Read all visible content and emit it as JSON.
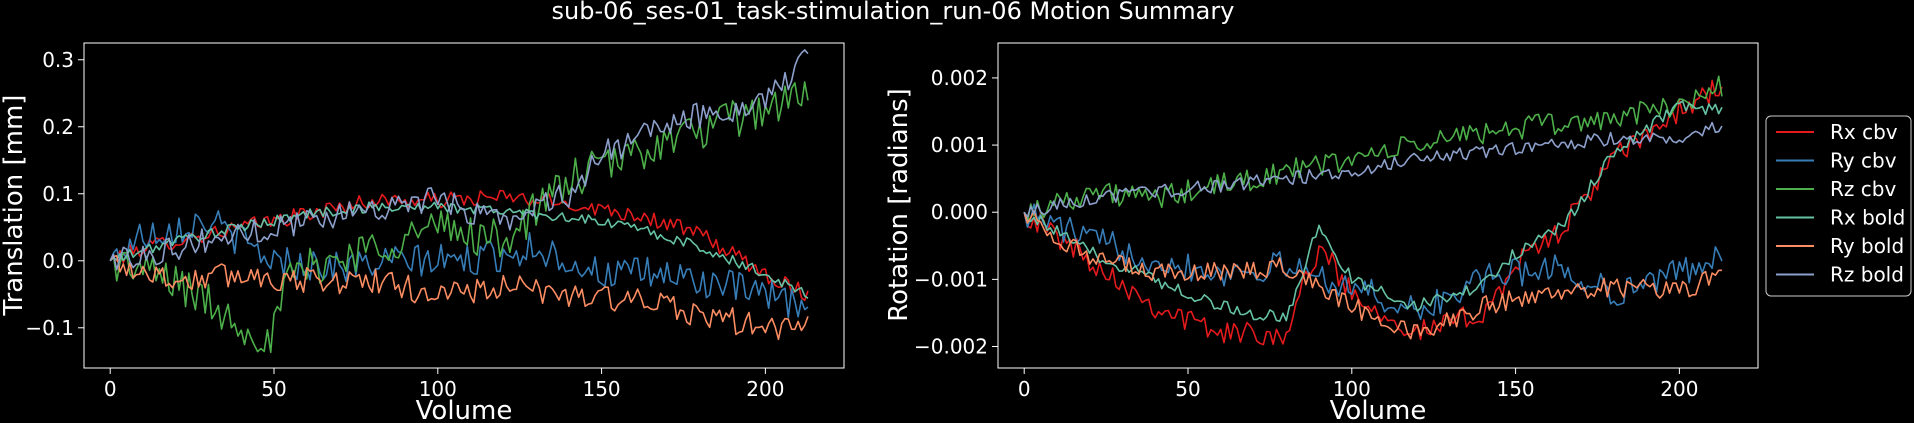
{
  "title": "sub-06_ses-01_task-stimulation_run-06 Motion Summary",
  "chart_data": [
    {
      "type": "line",
      "xlabel": "Volume",
      "ylabel": "Translation [mm]",
      "xlim": [
        -8,
        224
      ],
      "ylim": [
        -0.16,
        0.325
      ],
      "xticks": [
        0,
        50,
        100,
        150,
        200
      ],
      "yticks": [
        -0.1,
        0.0,
        0.1,
        0.2,
        0.3
      ],
      "ytick_labels": [
        "−0.1",
        "0.0",
        "0.1",
        "0.2",
        "0.3"
      ],
      "grid": false,
      "n_volumes": 214,
      "series": [
        {
          "key": "tx_cbv",
          "color": "#e41a1c",
          "anchors": [
            [
              0,
              0.0
            ],
            [
              10,
              0.02
            ],
            [
              30,
              0.04
            ],
            [
              60,
              0.07
            ],
            [
              80,
              0.09
            ],
            [
              100,
              0.09
            ],
            [
              120,
              0.095
            ],
            [
              140,
              0.085
            ],
            [
              160,
              0.07
            ],
            [
              180,
              0.04
            ],
            [
              200,
              -0.02
            ],
            [
              213,
              -0.05
            ]
          ],
          "noise": 0.012
        },
        {
          "key": "ty_cbv",
          "color": "#377eb8",
          "anchors": [
            [
              0,
              0.0
            ],
            [
              10,
              0.04
            ],
            [
              30,
              0.06
            ],
            [
              50,
              0.0
            ],
            [
              70,
              -0.01
            ],
            [
              90,
              0.0
            ],
            [
              110,
              0.0
            ],
            [
              130,
              0.02
            ],
            [
              150,
              -0.02
            ],
            [
              170,
              -0.02
            ],
            [
              190,
              -0.04
            ],
            [
              213,
              -0.07
            ]
          ],
          "noise": 0.025
        },
        {
          "key": "tz_cbv",
          "color": "#4daf4a",
          "anchors": [
            [
              0,
              0.0
            ],
            [
              20,
              -0.03
            ],
            [
              35,
              -0.08
            ],
            [
              49,
              -0.12
            ],
            [
              55,
              -0.02
            ],
            [
              80,
              0.02
            ],
            [
              100,
              0.05
            ],
            [
              120,
              0.03
            ],
            [
              140,
              0.12
            ],
            [
              165,
              0.17
            ],
            [
              190,
              0.21
            ],
            [
              213,
              0.25
            ]
          ],
          "noise": 0.03
        },
        {
          "key": "tx_bold",
          "color": "#66c2a5",
          "anchors": [
            [
              0,
              0.0
            ],
            [
              20,
              0.03
            ],
            [
              40,
              0.05
            ],
            [
              60,
              0.07
            ],
            [
              80,
              0.08
            ],
            [
              100,
              0.08
            ],
            [
              120,
              0.075
            ],
            [
              140,
              0.065
            ],
            [
              160,
              0.05
            ],
            [
              180,
              0.02
            ],
            [
              200,
              -0.02
            ],
            [
              213,
              -0.05
            ]
          ],
          "noise": 0.008
        },
        {
          "key": "ty_bold",
          "color": "#fc8d62",
          "anchors": [
            [
              0,
              0.0
            ],
            [
              20,
              -0.03
            ],
            [
              40,
              -0.02
            ],
            [
              60,
              -0.03
            ],
            [
              80,
              -0.03
            ],
            [
              100,
              -0.05
            ],
            [
              120,
              -0.04
            ],
            [
              140,
              -0.05
            ],
            [
              160,
              -0.06
            ],
            [
              180,
              -0.08
            ],
            [
              200,
              -0.1
            ],
            [
              213,
              -0.1
            ]
          ],
          "noise": 0.02
        },
        {
          "key": "tz_bold",
          "color": "#8da0cb",
          "anchors": [
            [
              0,
              0.0
            ],
            [
              20,
              0.02
            ],
            [
              40,
              0.04
            ],
            [
              60,
              0.06
            ],
            [
              80,
              0.08
            ],
            [
              100,
              0.09
            ],
            [
              120,
              0.06
            ],
            [
              140,
              0.1
            ],
            [
              150,
              0.16
            ],
            [
              175,
              0.21
            ],
            [
              200,
              0.24
            ],
            [
              213,
              0.3
            ]
          ],
          "noise": 0.02
        }
      ]
    },
    {
      "type": "line",
      "xlabel": "Volume",
      "ylabel": "Rotation [radians]",
      "xlim": [
        -8,
        224
      ],
      "ylim": [
        -0.00232,
        0.00252
      ],
      "xticks": [
        0,
        50,
        100,
        150,
        200
      ],
      "yticks": [
        -0.002,
        -0.001,
        0.0,
        0.001,
        0.002
      ],
      "ytick_labels": [
        "−0.002",
        "−0.001",
        "0.000",
        "0.001",
        "0.002"
      ],
      "grid": false,
      "n_volumes": 214,
      "series": [
        {
          "key": "rx_cbv",
          "color": "#e41a1c",
          "anchors": [
            [
              0,
              0.0
            ],
            [
              20,
              -0.0007
            ],
            [
              40,
              -0.0014
            ],
            [
              60,
              -0.0018
            ],
            [
              80,
              -0.0018
            ],
            [
              90,
              -0.0005
            ],
            [
              100,
              -0.0012
            ],
            [
              120,
              -0.0018
            ],
            [
              140,
              -0.0015
            ],
            [
              150,
              -0.0008
            ],
            [
              165,
              -0.0002
            ],
            [
              180,
              0.0008
            ],
            [
              200,
              0.0015
            ],
            [
              213,
              0.0019
            ]
          ],
          "noise": 0.00018
        },
        {
          "key": "ry_cbv",
          "color": "#377eb8",
          "anchors": [
            [
              0,
              0.0
            ],
            [
              20,
              -0.0004
            ],
            [
              40,
              -0.0007
            ],
            [
              60,
              -0.0009
            ],
            [
              80,
              -0.0008
            ],
            [
              100,
              -0.0011
            ],
            [
              120,
              -0.0015
            ],
            [
              140,
              -0.001
            ],
            [
              160,
              -0.0008
            ],
            [
              180,
              -0.0012
            ],
            [
              200,
              -0.0009
            ],
            [
              213,
              -0.0006
            ]
          ],
          "noise": 0.00022
        },
        {
          "key": "rz_cbv",
          "color": "#4daf4a",
          "anchors": [
            [
              0,
              0.0
            ],
            [
              20,
              0.0003
            ],
            [
              40,
              0.0002
            ],
            [
              60,
              0.0004
            ],
            [
              80,
              0.0006
            ],
            [
              100,
              0.0008
            ],
            [
              120,
              0.001
            ],
            [
              140,
              0.0012
            ],
            [
              160,
              0.0013
            ],
            [
              180,
              0.0014
            ],
            [
              200,
              0.0016
            ],
            [
              213,
              0.0019
            ]
          ],
          "noise": 0.00018
        },
        {
          "key": "rx_bold",
          "color": "#66c2a5",
          "anchors": [
            [
              0,
              0.0
            ],
            [
              20,
              -0.0006
            ],
            [
              40,
              -0.001
            ],
            [
              60,
              -0.0014
            ],
            [
              80,
              -0.0016
            ],
            [
              90,
              -0.0002
            ],
            [
              100,
              -0.001
            ],
            [
              120,
              -0.0014
            ],
            [
              140,
              -0.0011
            ],
            [
              150,
              -0.0006
            ],
            [
              165,
              -0.0002
            ],
            [
              180,
              0.0009
            ],
            [
              200,
              0.0016
            ],
            [
              213,
              0.0015
            ]
          ],
          "noise": 0.0001
        },
        {
          "key": "ry_bold",
          "color": "#fc8d62",
          "anchors": [
            [
              0,
              0.0
            ],
            [
              20,
              -0.0007
            ],
            [
              40,
              -0.0009
            ],
            [
              60,
              -0.0009
            ],
            [
              80,
              -0.0008
            ],
            [
              100,
              -0.0014
            ],
            [
              120,
              -0.0018
            ],
            [
              140,
              -0.0014
            ],
            [
              160,
              -0.0012
            ],
            [
              180,
              -0.0011
            ],
            [
              200,
              -0.0012
            ],
            [
              213,
              -0.0009
            ]
          ],
          "noise": 0.00015
        },
        {
          "key": "rz_bold",
          "color": "#8da0cb",
          "anchors": [
            [
              0,
              0.0
            ],
            [
              20,
              0.0002
            ],
            [
              40,
              0.0003
            ],
            [
              60,
              0.0004
            ],
            [
              80,
              0.0005
            ],
            [
              100,
              0.0006
            ],
            [
              120,
              0.0008
            ],
            [
              140,
              0.0009
            ],
            [
              160,
              0.001
            ],
            [
              180,
              0.0011
            ],
            [
              200,
              0.0011
            ],
            [
              213,
              0.0013
            ]
          ],
          "noise": 0.0001
        }
      ]
    }
  ],
  "legend": {
    "placement": "right",
    "entries": [
      {
        "label": "Rx cbv",
        "color": "#e41a1c"
      },
      {
        "label": "Ry cbv",
        "color": "#377eb8"
      },
      {
        "label": "Rz cbv",
        "color": "#4daf4a"
      },
      {
        "label": "Rx bold",
        "color": "#66c2a5"
      },
      {
        "label": "Ry bold",
        "color": "#fc8d62"
      },
      {
        "label": "Rz bold",
        "color": "#8da0cb"
      }
    ]
  }
}
